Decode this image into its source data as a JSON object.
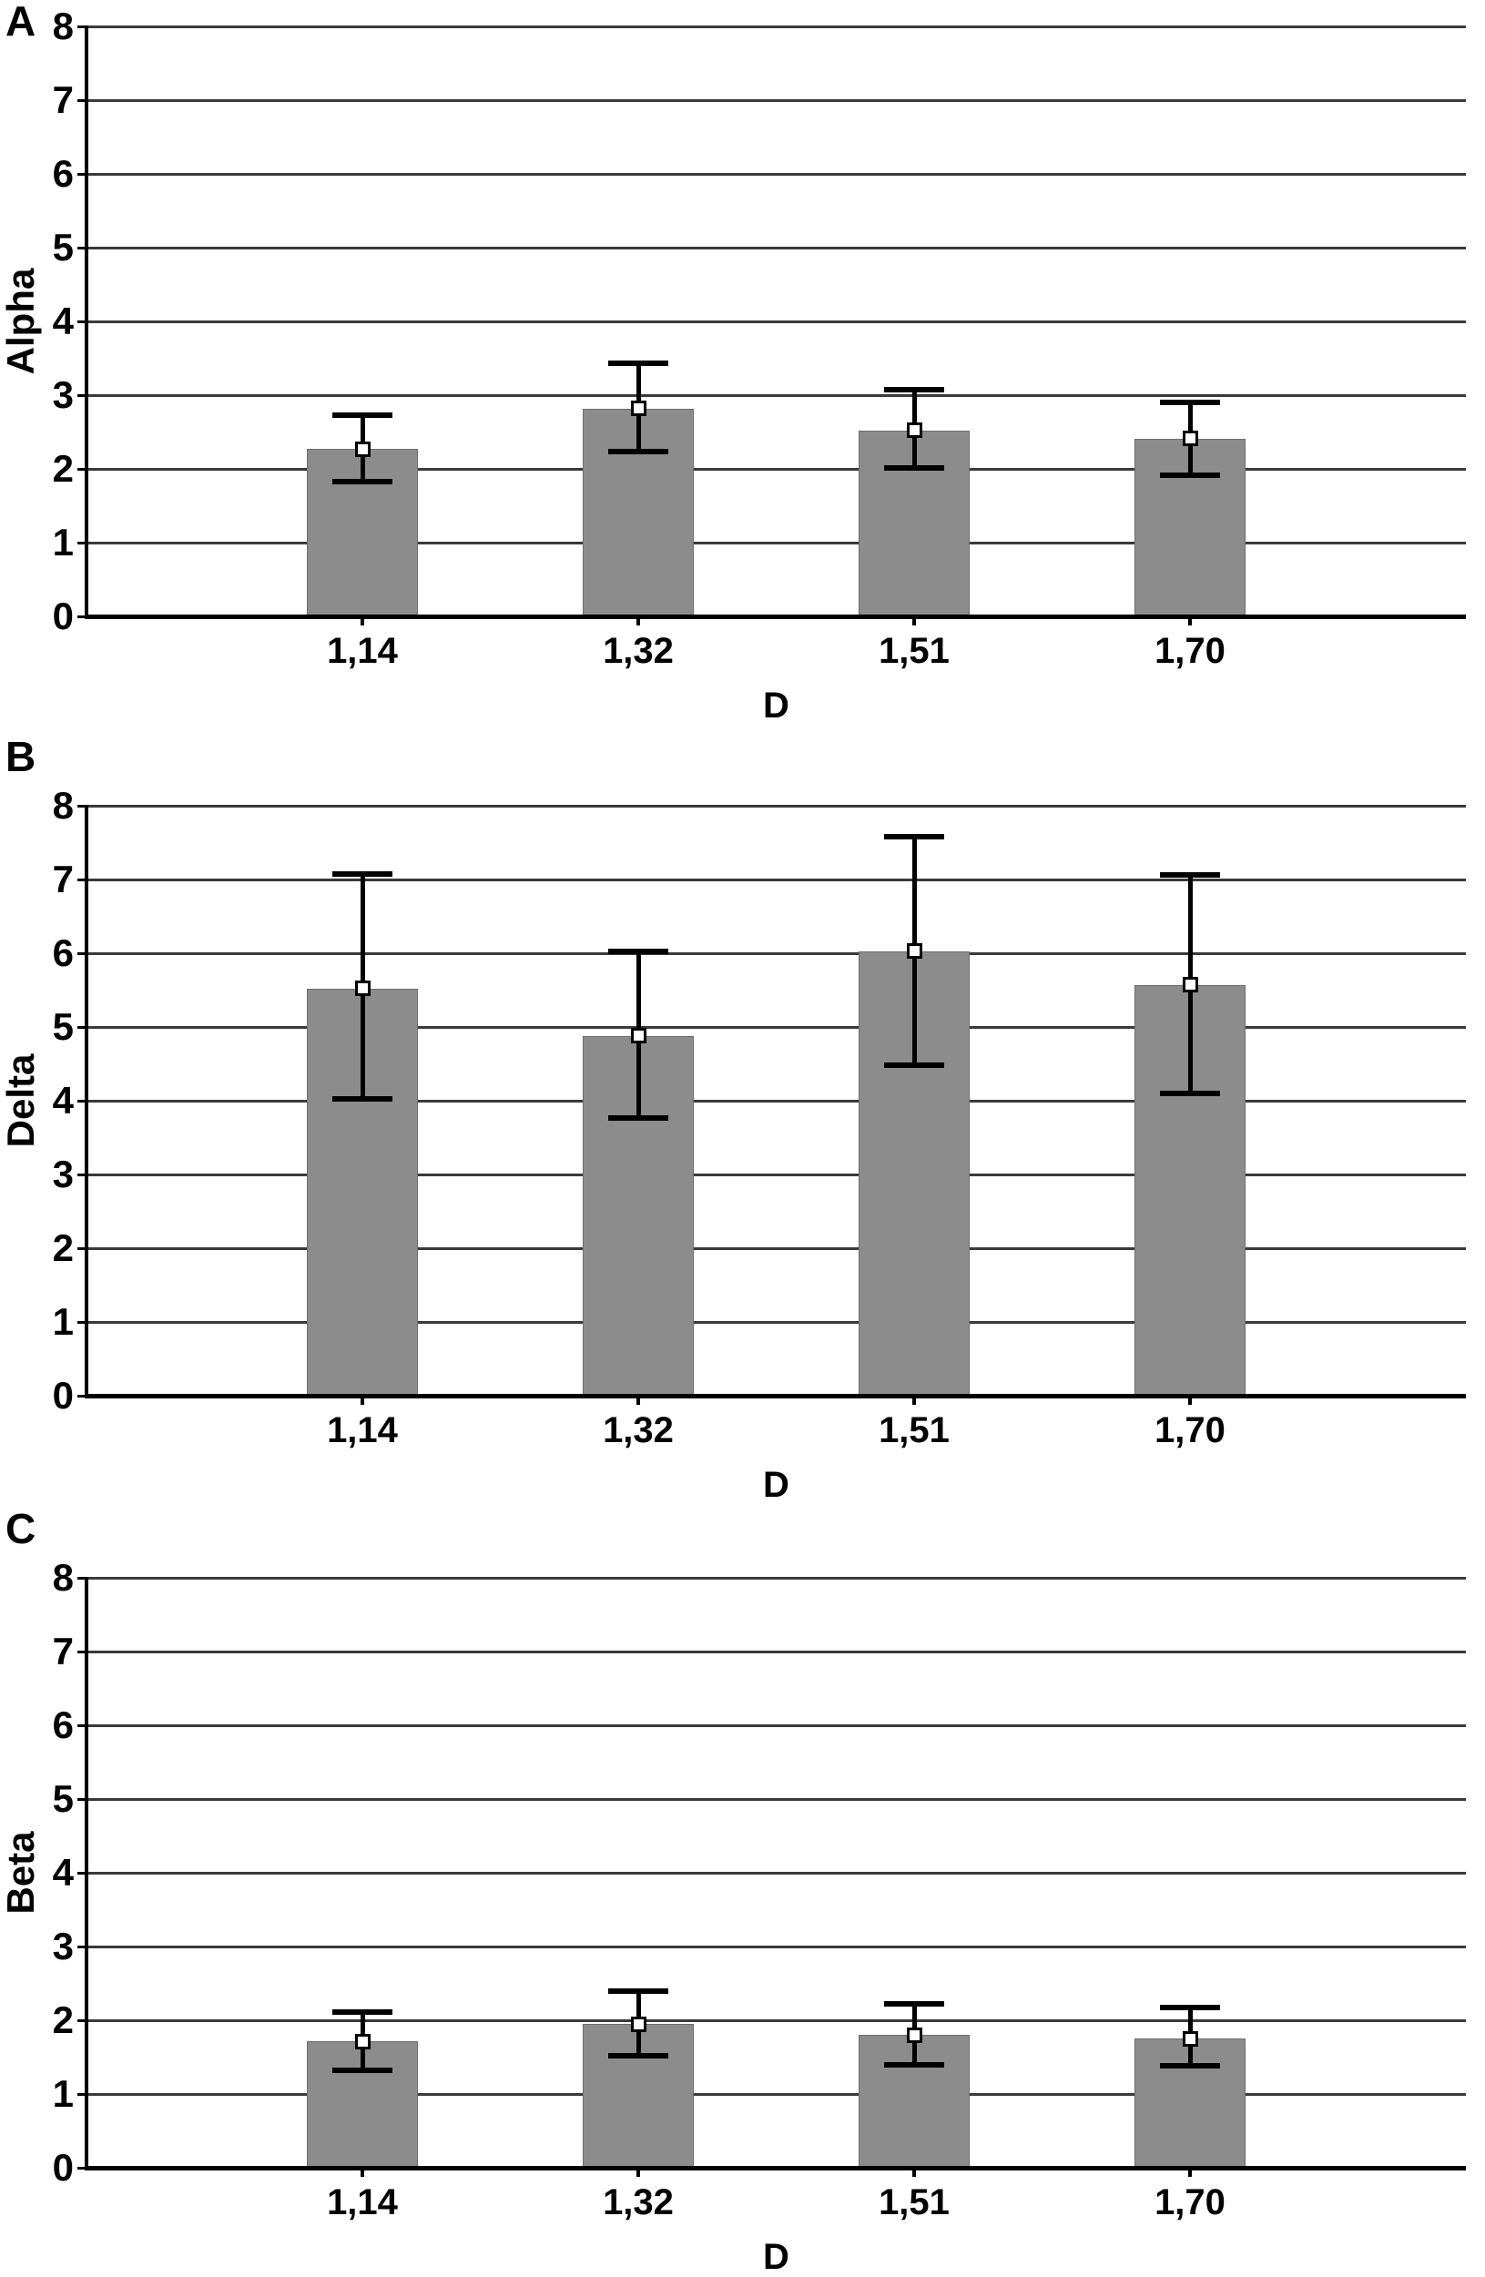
{
  "figure": {
    "background": "#ffffff",
    "bar_color": "#8c8c8c",
    "bar_border_color": "#6e6e6e",
    "grid_color": "#3a3a3a",
    "axis_color": "#000000",
    "text_color": "#000000",
    "marker_style": "white-square"
  },
  "chart_data": [
    {
      "type": "bar",
      "panel_letter": "A",
      "ylabel": "Alpha",
      "xlabel": "D",
      "categories": [
        "1,14",
        "1,32",
        "1,51",
        "1,70"
      ],
      "series": [
        {
          "name": "mean",
          "values": [
            2.27,
            2.82,
            2.52,
            2.41
          ]
        }
      ],
      "error_high": [
        2.73,
        3.43,
        3.08,
        2.9
      ],
      "error_low": [
        1.83,
        2.23,
        2.01,
        1.91
      ],
      "ylim": [
        0,
        8
      ],
      "ytick_labels": [
        "0",
        "1",
        "2",
        "3",
        "4",
        "5",
        "6",
        "7",
        "8"
      ],
      "grid": true,
      "legend": "none"
    },
    {
      "type": "bar",
      "panel_letter": "B",
      "ylabel": "Delta",
      "xlabel": "D",
      "categories": [
        "1,14",
        "1,32",
        "1,51",
        "1,70"
      ],
      "series": [
        {
          "name": "mean",
          "values": [
            5.52,
            4.88,
            6.03,
            5.57
          ]
        }
      ],
      "error_high": [
        7.07,
        6.02,
        7.58,
        7.06
      ],
      "error_low": [
        4.03,
        3.76,
        4.48,
        4.1
      ],
      "ylim": [
        0,
        8
      ],
      "ytick_labels": [
        "0",
        "1",
        "2",
        "3",
        "4",
        "5",
        "6",
        "7",
        "8"
      ],
      "grid": true,
      "legend": "none"
    },
    {
      "type": "bar",
      "panel_letter": "C",
      "ylabel": "Beta",
      "xlabel": "D",
      "categories": [
        "1,14",
        "1,32",
        "1,51",
        "1,70"
      ],
      "series": [
        {
          "name": "mean",
          "values": [
            1.71,
            1.95,
            1.8,
            1.75
          ]
        }
      ],
      "error_high": [
        2.11,
        2.4,
        2.22,
        2.17
      ],
      "error_low": [
        1.32,
        1.52,
        1.4,
        1.38
      ],
      "ylim": [
        0,
        8
      ],
      "ytick_labels": [
        "0",
        "1",
        "2",
        "3",
        "4",
        "5",
        "6",
        "7",
        "8"
      ],
      "grid": true,
      "legend": "none"
    }
  ]
}
